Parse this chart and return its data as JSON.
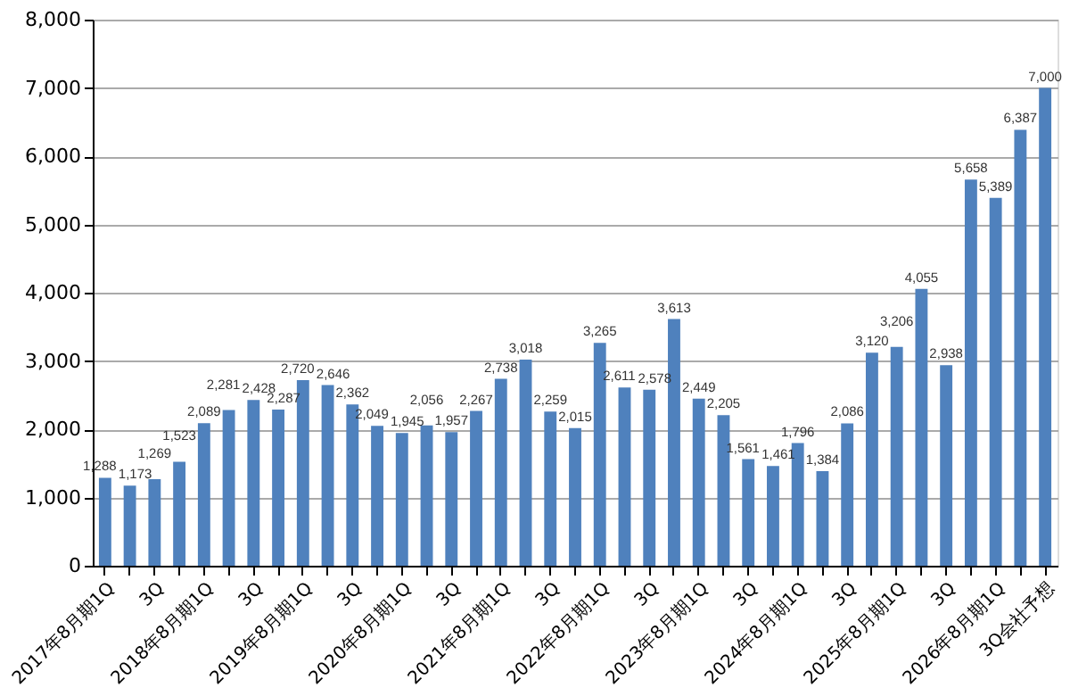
{
  "chart_data": {
    "type": "bar",
    "categories": [
      "2017年8月期1Q",
      null,
      "3Q",
      null,
      "2018年8月期1Q",
      null,
      "3Q",
      null,
      "2019年8月期1Q",
      null,
      "3Q",
      null,
      "2020年8月期1Q",
      null,
      "3Q",
      null,
      "2021年8月期1Q",
      null,
      "3Q",
      null,
      "2022年8月期1Q",
      null,
      "3Q",
      null,
      "2023年8月期1Q",
      null,
      "3Q",
      null,
      "2024年8月期1Q",
      null,
      "3Q",
      null,
      "2025年8月期1Q",
      null,
      "3Q",
      null,
      "2026年8月期1Q",
      null,
      "3Q会社予想"
    ],
    "values": [
      1288,
      1173,
      1269,
      1523,
      2089,
      2281,
      2428,
      2287,
      2720,
      2646,
      2362,
      2049,
      1945,
      2056,
      1957,
      2267,
      2738,
      3018,
      2259,
      2015,
      3265,
      2611,
      2578,
      3613,
      2449,
      2205,
      1561,
      1461,
      1796,
      1384,
      2086,
      3120,
      3206,
      4055,
      2938,
      5658,
      5389,
      6387,
      7000
    ],
    "color": "#4f81bd",
    "ylim": [
      0,
      8000
    ],
    "yticks": [
      {
        "value": 0,
        "label": "0"
      },
      {
        "value": 1000,
        "label": "1,000"
      },
      {
        "value": 2000,
        "label": "2,000"
      },
      {
        "value": 3000,
        "label": "3,000"
      },
      {
        "value": 4000,
        "label": "4,000"
      },
      {
        "value": 5000,
        "label": "5,000"
      },
      {
        "value": 6000,
        "label": "6,000"
      },
      {
        "value": 7000,
        "label": "7,000"
      },
      {
        "value": 8000,
        "label": "8,000"
      }
    ],
    "grid": "y",
    "data_labels": true,
    "value_labels": [
      "1,288",
      "1,173",
      "1,269",
      "1,523",
      "2,089",
      "2,281",
      "2,428",
      "2,287",
      "2,720",
      "2,646",
      "2,362",
      "2,049",
      "1,945",
      "2,056",
      "1,957",
      "2,267",
      "2,738",
      "3,018",
      "2,259",
      "2,015",
      "3,265",
      "2,611",
      "2,578",
      "3,613",
      "2,449",
      "2,205",
      "1,561",
      "1,461",
      "1,796",
      "1,384",
      "2,086",
      "3,120",
      "3,206",
      "4,055",
      "2,938",
      "5,658",
      "5,389",
      "6,387",
      "7,000"
    ]
  }
}
